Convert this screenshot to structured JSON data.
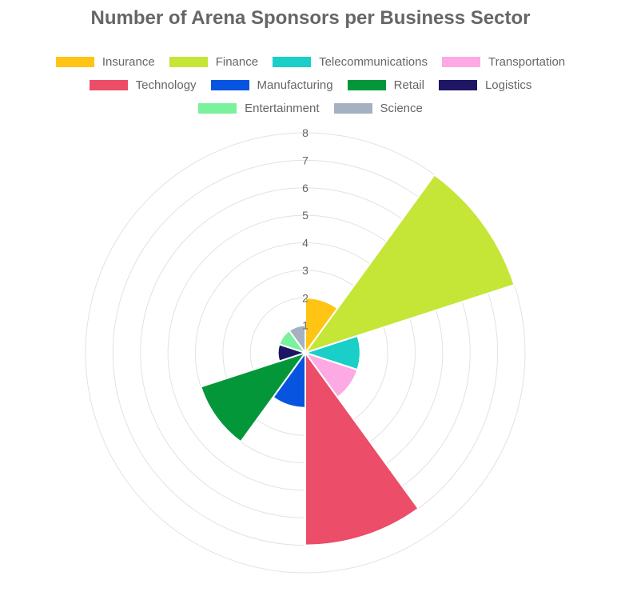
{
  "chart_data": {
    "type": "polarArea",
    "title": "Number of Arena Sponsors per Business Sector",
    "categories": [
      "Insurance",
      "Finance",
      "Telecommunications",
      "Transportation",
      "Technology",
      "Manufacturing",
      "Retail",
      "Logistics",
      "Entertainment",
      "Science"
    ],
    "values": [
      2,
      8,
      2,
      2,
      7,
      2,
      4,
      1,
      1,
      1
    ],
    "colors": [
      "#ffc414",
      "#c5e537",
      "#19cfc8",
      "#fda9e3",
      "#ec4d68",
      "#0654e0",
      "#03973a",
      "#1e1565",
      "#7af19c",
      "#a5b1c1"
    ],
    "r_ticks": [
      "1",
      "2",
      "3",
      "4",
      "5",
      "6",
      "7",
      "8"
    ],
    "r_range": [
      0,
      8
    ],
    "grid": true,
    "legend_position": "top"
  }
}
